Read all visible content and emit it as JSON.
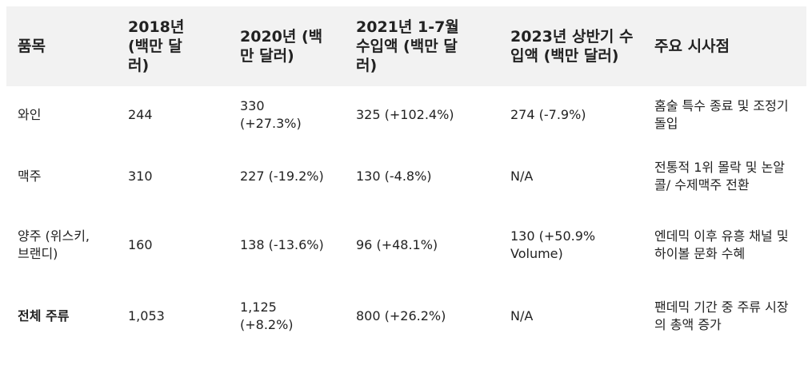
{
  "table": {
    "headers": [
      "품목",
      "2018년 (백만 달러)",
      "2020년 (백만 달러)",
      "2021년 1-7월 수입액 (백만 달러)",
      "2023년 상반기 수입액 (백만 달러)",
      "주요 시사점"
    ],
    "rows": [
      [
        "와인",
        "244",
        "330 (+27.3%)",
        "325 (+102.4%)",
        "274 (-7.9%)",
        "홈술 특수 종료 및 조정기 돌입"
      ],
      [
        "맥주",
        "310",
        "227 (-19.2%)",
        "130 (-4.8%)",
        "N/A",
        "전통적 1위 몰락 및 논알콜/ 수제맥주 전환"
      ],
      [
        "양주 (위스키, 브랜디)",
        "160",
        "138 (-13.6%)",
        "96 (+48.1%)",
        "130 (+50.9% Volume)",
        "엔데믹 이후 유흥 채널 및 하이볼 문화 수혜"
      ],
      [
        "전체 주류",
        "1,053",
        "1,125 (+8.2%)",
        "800 (+26.2%)",
        "N/A",
        "팬데믹 기간 중 주류 시장의 총액 증가"
      ]
    ]
  }
}
